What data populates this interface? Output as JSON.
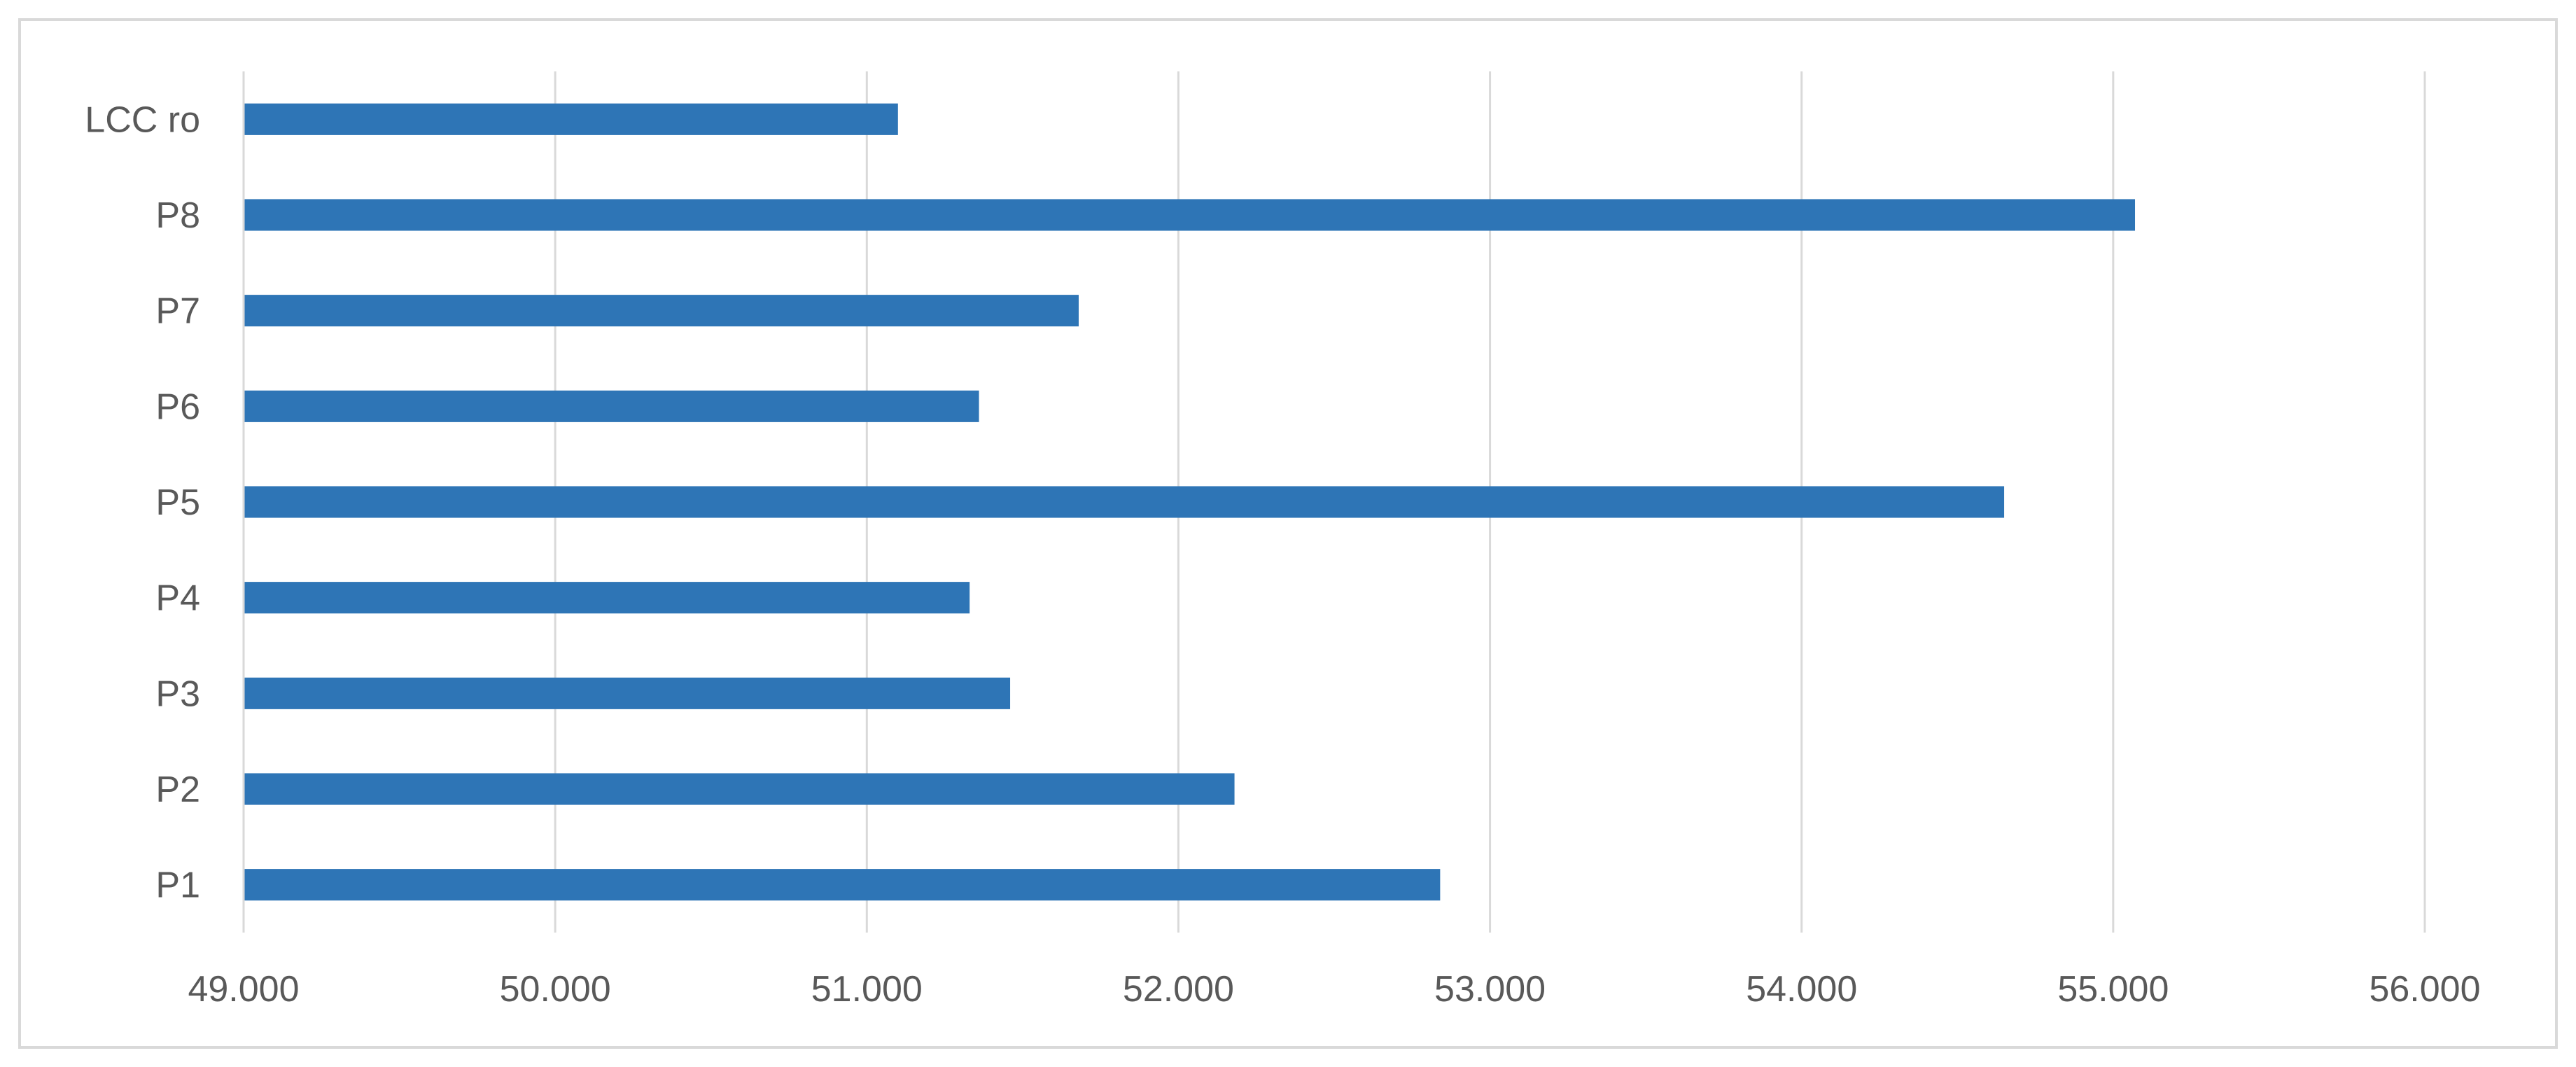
{
  "chart_data": {
    "type": "bar",
    "orientation": "horizontal",
    "title": "",
    "xlabel": "",
    "ylabel": "",
    "categories": [
      "P1",
      "P2",
      "P3",
      "P4",
      "P5",
      "P6",
      "P7",
      "P8",
      "LCC ro"
    ],
    "values": [
      52840,
      52180,
      51460,
      51330,
      54650,
      51360,
      51680,
      55070,
      51100
    ],
    "xlim": [
      49000,
      56000
    ],
    "x_ticks": [
      49000,
      50000,
      51000,
      52000,
      53000,
      54000,
      55000,
      56000
    ],
    "x_tick_labels": [
      "49.000",
      "50.000",
      "51.000",
      "52.000",
      "53.000",
      "54.000",
      "55.000",
      "56.000"
    ],
    "grid": "vertical",
    "legend": "none",
    "colors": {
      "bar": "#2e75b6",
      "grid": "#d9d9d9",
      "text": "#595959",
      "frame": "#d9d9d9"
    }
  }
}
